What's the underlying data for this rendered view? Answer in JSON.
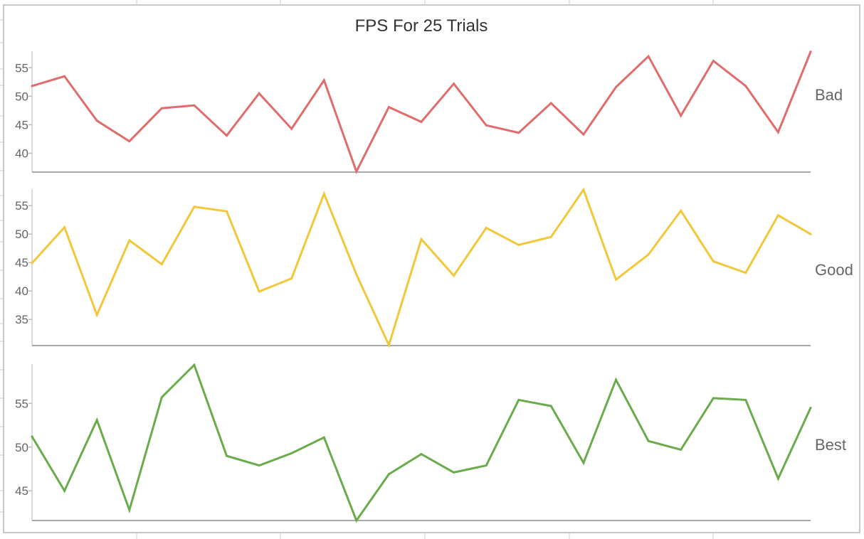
{
  "chart_data": {
    "type": "line",
    "title": "FPS For 25 Trials",
    "x": [
      1,
      2,
      3,
      4,
      5,
      6,
      7,
      8,
      9,
      10,
      11,
      12,
      13,
      14,
      15,
      16,
      17,
      18,
      19,
      20,
      21,
      22,
      23,
      24,
      25
    ],
    "series": [
      {
        "name": "Bad",
        "color": "#e06c6c",
        "yticks": [
          40,
          45,
          50,
          55
        ],
        "ylim": [
          36.7,
          57.9
        ],
        "values": [
          51.8,
          53.5,
          45.7,
          42.1,
          47.9,
          48.4,
          43.1,
          50.5,
          44.3,
          52.8,
          36.8,
          48.1,
          45.5,
          52.2,
          44.9,
          43.6,
          48.8,
          43.3,
          51.6,
          57.0,
          46.6,
          56.2,
          51.8,
          43.7,
          57.8
        ]
      },
      {
        "name": "Good",
        "color": "#f2c73a",
        "yticks": [
          35,
          40,
          45,
          50,
          55
        ],
        "ylim": [
          30.4,
          57.9
        ],
        "values": [
          44.9,
          51.2,
          35.8,
          48.9,
          44.7,
          54.8,
          54.0,
          39.9,
          42.2,
          57.1,
          42.9,
          30.5,
          49.1,
          42.7,
          51.1,
          48.1,
          49.5,
          57.8,
          42.0,
          46.4,
          54.1,
          45.2,
          43.2,
          53.3,
          50.0
        ]
      },
      {
        "name": "Best",
        "color": "#6aab4c",
        "yticks": [
          45,
          50,
          55
        ],
        "ylim": [
          41.6,
          59.5
        ],
        "values": [
          51.2,
          45.0,
          53.1,
          42.8,
          55.7,
          59.4,
          49.0,
          47.9,
          49.3,
          51.1,
          41.6,
          46.9,
          49.2,
          47.1,
          47.9,
          55.4,
          54.7,
          48.2,
          57.7,
          50.7,
          49.7,
          55.6,
          55.4,
          46.4,
          54.5
        ]
      }
    ]
  }
}
